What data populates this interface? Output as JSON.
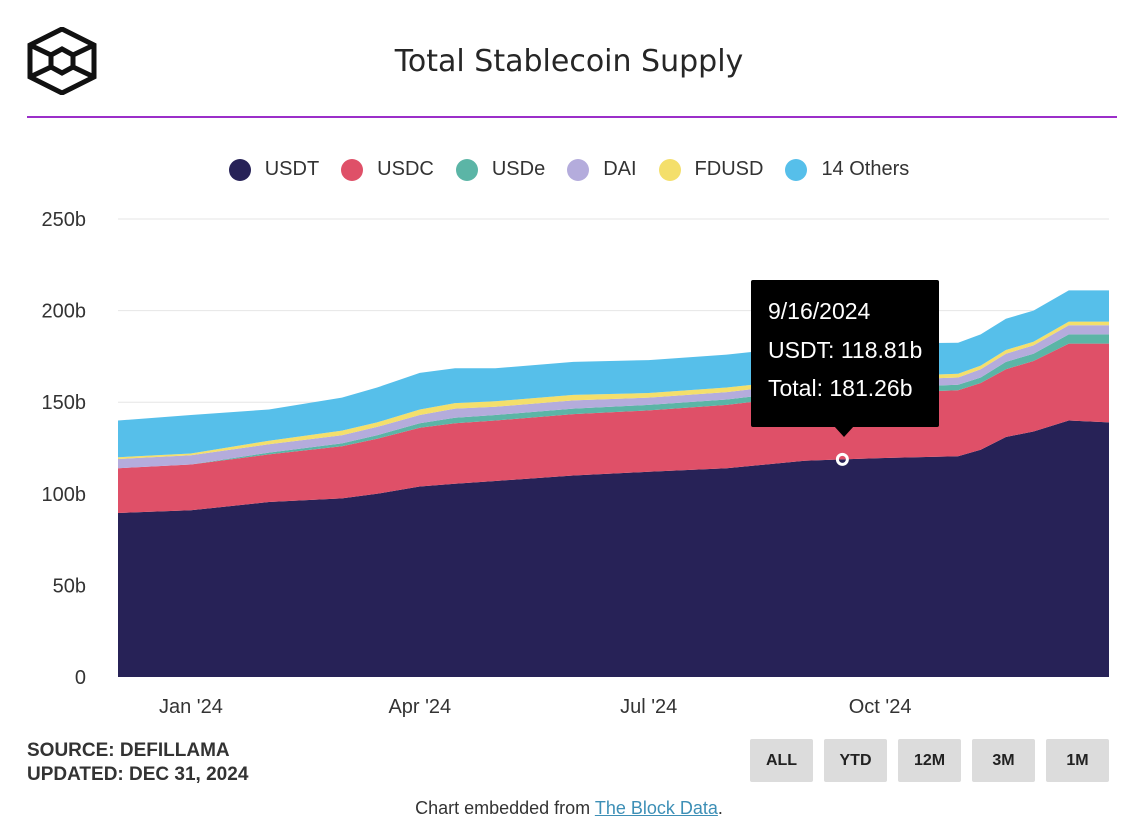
{
  "title": "Total Stablecoin Supply",
  "legend": [
    {
      "name": "USDT",
      "color": "#272257"
    },
    {
      "name": "USDC",
      "color": "#df5068"
    },
    {
      "name": "USDe",
      "color": "#5bb5a6"
    },
    {
      "name": "DAI",
      "color": "#b4acdc"
    },
    {
      "name": "FDUSD",
      "color": "#f4df6b"
    },
    {
      "name": "14 Others",
      "color": "#56bfea"
    }
  ],
  "footer": {
    "source": "SOURCE: DEFILLAMA",
    "updated": "UPDATED: DEC 31, 2024",
    "embed_prefix": "Chart embedded from ",
    "embed_link": "The Block Data",
    "embed_suffix": "."
  },
  "buttons": [
    "ALL",
    "YTD",
    "12M",
    "3M",
    "1M"
  ],
  "tooltip": {
    "date": "9/16/2024",
    "usdt": "USDT: 118.81b",
    "total": "Total: 181.26b"
  },
  "chart_data": {
    "type": "area",
    "stacked": true,
    "title": "Total Stablecoin Supply",
    "ylim": [
      0,
      250
    ],
    "yticks": [
      0,
      50,
      100,
      150,
      200,
      250
    ],
    "ytick_labels": [
      "0",
      "50b",
      "100b",
      "150b",
      "200b",
      "250b"
    ],
    "xtick_labels": [
      {
        "label": "Jan '24",
        "x": "2024-01-01"
      },
      {
        "label": "Apr '24",
        "x": "2024-04-01"
      },
      {
        "label": "Jul '24",
        "x": "2024-07-01"
      },
      {
        "label": "Oct '24",
        "x": "2024-10-01"
      }
    ],
    "x": [
      "2023-12-03",
      "2024-01-01",
      "2024-02-01",
      "2024-03-01",
      "2024-03-15",
      "2024-04-01",
      "2024-04-15",
      "2024-05-01",
      "2024-06-01",
      "2024-07-01",
      "2024-08-01",
      "2024-09-01",
      "2024-09-16",
      "2024-10-01",
      "2024-11-01",
      "2024-11-10",
      "2024-11-20",
      "2024-12-01",
      "2024-12-15",
      "2024-12-31"
    ],
    "series": [
      {
        "name": "USDT",
        "values": [
          89.5,
          91,
          95.5,
          97.5,
          100,
          104,
          105.5,
          107,
          110,
          112,
          114,
          118,
          118.8,
          119.5,
          120.5,
          124,
          131,
          134,
          140,
          139
        ]
      },
      {
        "name": "USDC",
        "values": [
          24.5,
          25,
          26,
          28.5,
          30,
          32,
          33,
          33,
          33.5,
          33.5,
          34.5,
          35.5,
          35.5,
          35.5,
          36,
          36.5,
          37,
          38.5,
          42,
          43
        ]
      },
      {
        "name": "USDe",
        "values": [
          0,
          0,
          1,
          1.5,
          2,
          2.5,
          3,
          3,
          3,
          3,
          3,
          3,
          3,
          3,
          3,
          3,
          4,
          4,
          5,
          5
        ]
      },
      {
        "name": "DAI",
        "values": [
          5,
          5,
          4.5,
          4.5,
          4.5,
          4.5,
          5,
          4.5,
          4.5,
          4,
          4,
          4,
          4,
          4,
          4,
          4.5,
          4.5,
          4.5,
          5,
          5
        ]
      },
      {
        "name": "FDUSD",
        "values": [
          1,
          1,
          2,
          2.5,
          2.5,
          3,
          3,
          3,
          3,
          2.5,
          2.5,
          2,
          2,
          2,
          2,
          2,
          2,
          2,
          2,
          2
        ]
      },
      {
        "name": "14 Others",
        "values": [
          20,
          21,
          17,
          18,
          19,
          20,
          19,
          18,
          18,
          18,
          18,
          18,
          18,
          18,
          17,
          17,
          17,
          17,
          17,
          17
        ]
      }
    ]
  }
}
